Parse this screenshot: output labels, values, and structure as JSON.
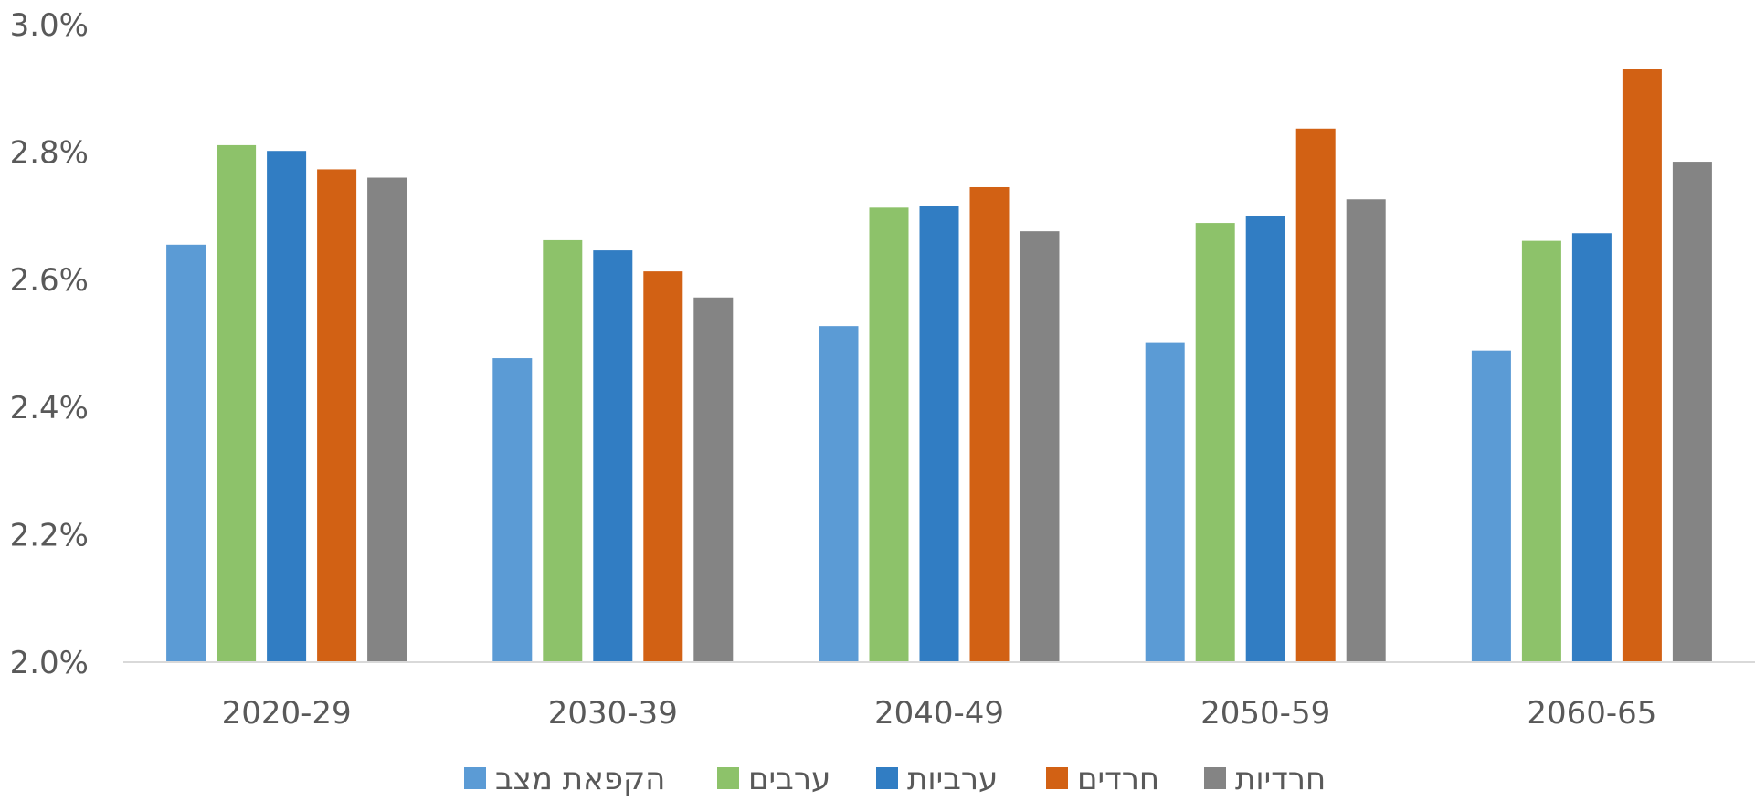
{
  "chart_data": {
    "type": "bar",
    "categories": [
      "2020-29",
      "2030-39",
      "2040-49",
      "2050-59",
      "2060-65"
    ],
    "series": [
      {
        "name": "הקפאת מצב",
        "color": "#5B9BD5",
        "values": [
          2.655,
          2.477,
          2.527,
          2.502,
          2.489
        ]
      },
      {
        "name": "ערבים",
        "color": "#8DC26A",
        "values": [
          2.811,
          2.662,
          2.713,
          2.689,
          2.661
        ]
      },
      {
        "name": "ערביות",
        "color": "#317DC3",
        "values": [
          2.802,
          2.646,
          2.716,
          2.7,
          2.673
        ]
      },
      {
        "name": "חרדים",
        "color": "#D26114",
        "values": [
          2.773,
          2.613,
          2.745,
          2.837,
          2.931
        ]
      },
      {
        "name": "חרדיות",
        "color": "#848484",
        "values": [
          2.76,
          2.572,
          2.676,
          2.726,
          2.785
        ]
      }
    ],
    "ylim": [
      2.0,
      3.0
    ],
    "yticks": [
      "2.0%",
      "2.2%",
      "2.4%",
      "2.6%",
      "2.8%",
      "3.0%"
    ],
    "ytick_values": [
      2.0,
      2.2,
      2.4,
      2.6,
      2.8,
      3.0
    ],
    "grid": false,
    "legend_position": "bottom"
  }
}
